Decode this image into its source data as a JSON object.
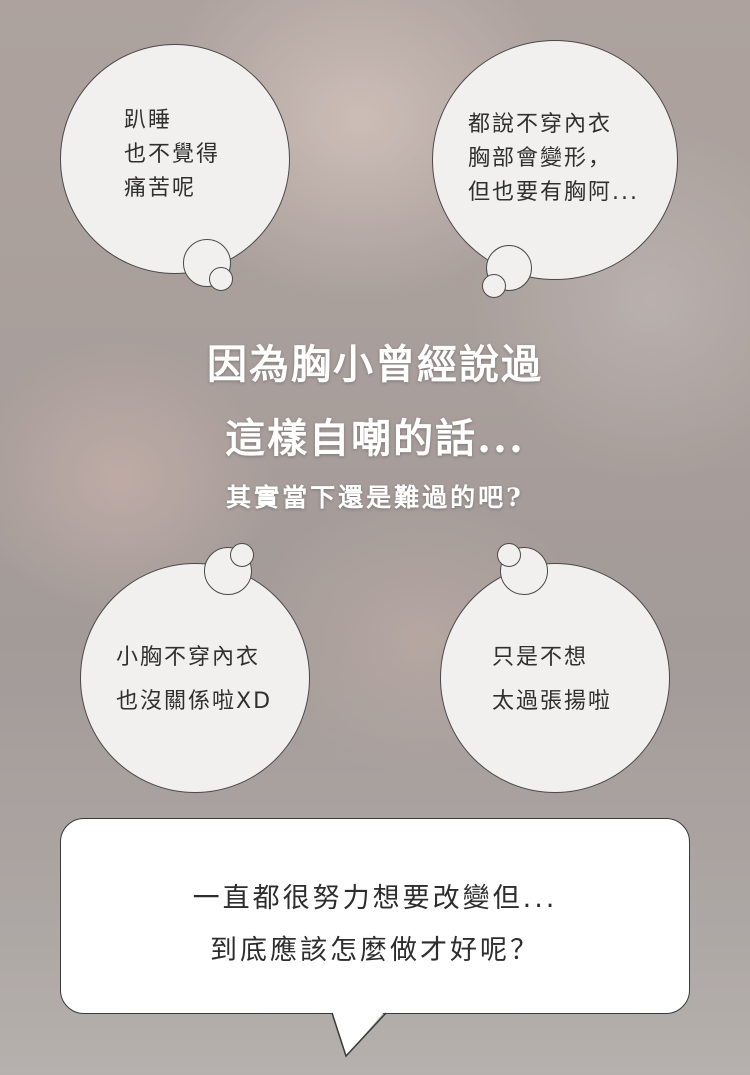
{
  "bubbles": {
    "top_left": [
      "趴睡",
      "也不覺得",
      "痛苦呢"
    ],
    "top_right": [
      "都說不穿內衣",
      "胸部會變形，",
      "但也要有胸阿..."
    ],
    "bottom_left": [
      "小胸不穿內衣",
      "也沒關係啦XD"
    ],
    "bottom_right": [
      "只是不想",
      "太過張揚啦"
    ]
  },
  "headline": {
    "line1": "因為胸小曾經說過",
    "line2": "這樣自嘲的話...",
    "line3": "其實當下還是難過的吧?"
  },
  "speech": {
    "line1": "一直都很努力想要改變但...",
    "line2": "到底應該怎麼做才好呢？"
  }
}
